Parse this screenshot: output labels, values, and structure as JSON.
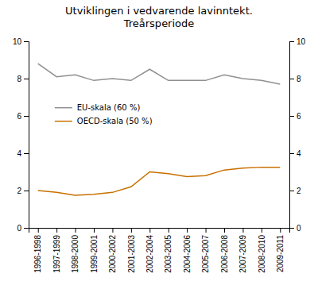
{
  "chart_data": {
    "type": "line",
    "title": "Utviklingen i vedvarende lavinntekt.\nTreårsperiode",
    "categories": [
      "1996-1998",
      "1997-1999",
      "1998-2000",
      "1999-2001",
      "2000-2002",
      "2001-2003",
      "2002-2004",
      "2003-2005",
      "2004-2006",
      "2005-2007",
      "2006-2008",
      "2007-2009",
      "2008-2010",
      "2009-2011"
    ],
    "series": [
      {
        "name": "EU-skala (60 %)",
        "color": "#909090",
        "values": [
          8.8,
          8.1,
          8.2,
          7.9,
          8.0,
          7.9,
          8.5,
          7.9,
          7.9,
          7.9,
          8.2,
          8.0,
          7.9,
          7.7
        ]
      },
      {
        "name": "OECD-skala (50 %)",
        "color": "#C87000",
        "values": [
          2.0,
          1.9,
          1.75,
          1.8,
          1.9,
          2.2,
          3.0,
          2.9,
          2.75,
          2.8,
          3.1,
          3.2,
          3.25,
          3.25
        ]
      }
    ],
    "ylim": [
      0,
      10
    ],
    "yticks": [
      0,
      2,
      4,
      6,
      8,
      10
    ],
    "y2lim": [
      0,
      10
    ],
    "y2ticks": [
      0,
      2,
      4,
      6,
      8,
      10
    ],
    "grid": false,
    "legend": "upper left"
  }
}
